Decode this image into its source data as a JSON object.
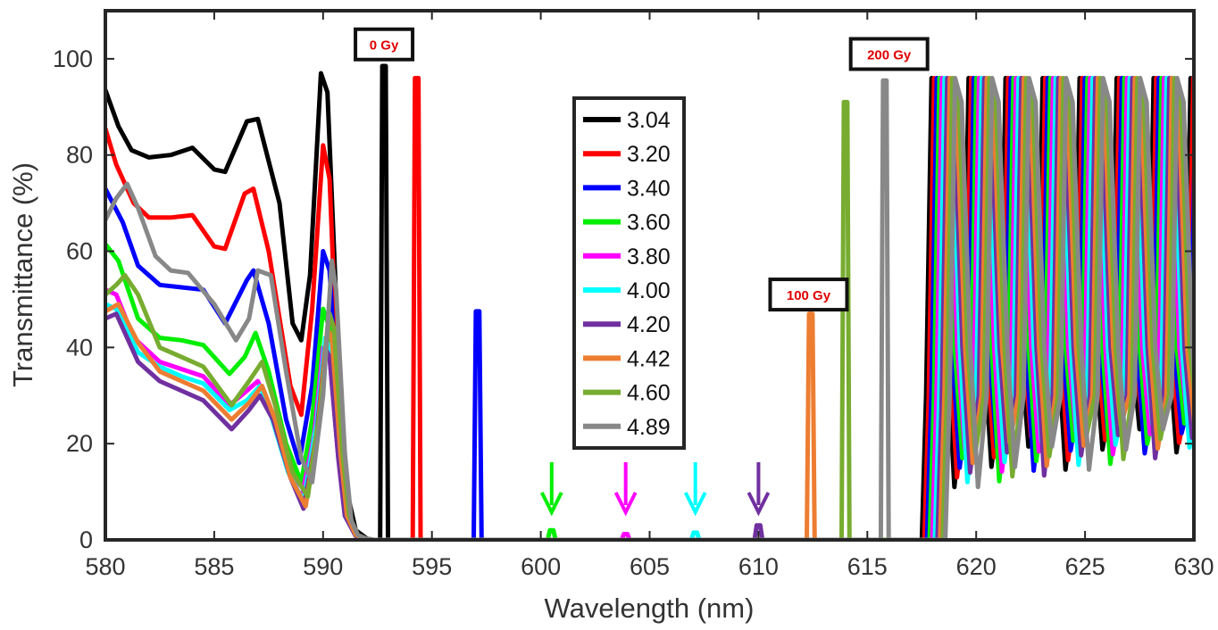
{
  "chart_data": {
    "type": "line",
    "title": "",
    "xlabel": "Wavelength (nm)",
    "ylabel": "Transmittance (%)",
    "xlim": [
      580,
      630
    ],
    "ylim": [
      0,
      110
    ],
    "xticks": [
      580,
      585,
      590,
      595,
      600,
      605,
      610,
      615,
      620,
      625,
      630
    ],
    "yticks": [
      0,
      20,
      40,
      60,
      80,
      100
    ],
    "grid": false,
    "legend_position": "center",
    "series": [
      {
        "name": "3.04",
        "color": "#000000",
        "shoulder": [
          [
            580,
            93.5
          ],
          [
            580.6,
            86
          ],
          [
            581.2,
            81
          ],
          [
            582,
            79.5
          ],
          [
            583,
            80
          ],
          [
            584,
            81.5
          ],
          [
            585,
            77
          ],
          [
            585.5,
            76.5
          ],
          [
            586.5,
            87
          ],
          [
            587,
            87.5
          ],
          [
            588,
            70
          ],
          [
            588.6,
            45
          ],
          [
            589,
            41.5
          ],
          [
            589.4,
            55
          ],
          [
            589.9,
            97
          ],
          [
            590.2,
            93
          ],
          [
            590.6,
            50
          ],
          [
            591,
            12
          ],
          [
            591.5,
            2
          ],
          [
            592,
            0.3
          ]
        ],
        "defect_nm": 592.8,
        "defect_peak": 98.5
      },
      {
        "name": "3.20",
        "color": "#ff0000",
        "shoulder": [
          [
            580,
            85.5
          ],
          [
            580.5,
            78
          ],
          [
            581.3,
            70
          ],
          [
            582,
            67
          ],
          [
            583,
            67
          ],
          [
            584,
            67.5
          ],
          [
            585,
            61
          ],
          [
            585.5,
            60.5
          ],
          [
            586.4,
            72
          ],
          [
            586.8,
            73
          ],
          [
            587.5,
            60
          ],
          [
            588.5,
            32
          ],
          [
            589,
            26
          ],
          [
            589.5,
            48
          ],
          [
            590,
            82
          ],
          [
            590.3,
            75
          ],
          [
            590.7,
            30
          ],
          [
            591,
            8
          ],
          [
            591.5,
            1
          ],
          [
            592,
            0.2
          ]
        ],
        "defect_nm": 594.3,
        "defect_peak": 96
      },
      {
        "name": "3.40",
        "color": "#0000ff",
        "shoulder": [
          [
            580,
            73
          ],
          [
            580.8,
            66
          ],
          [
            581.5,
            57
          ],
          [
            582.5,
            53
          ],
          [
            583.5,
            52.5
          ],
          [
            584.5,
            52
          ],
          [
            585.5,
            45
          ],
          [
            586.5,
            54
          ],
          [
            586.8,
            56
          ],
          [
            587.5,
            45
          ],
          [
            588.3,
            25
          ],
          [
            588.9,
            16
          ],
          [
            589.5,
            32
          ],
          [
            590,
            60
          ],
          [
            590.3,
            56
          ],
          [
            590.7,
            25
          ],
          [
            591,
            7
          ],
          [
            591.5,
            1
          ],
          [
            592,
            0.2
          ]
        ],
        "defect_nm": 597.1,
        "defect_peak": 47.5
      },
      {
        "name": "3.60",
        "color": "#00ee00",
        "shoulder": [
          [
            580,
            61.5
          ],
          [
            580.6,
            58
          ],
          [
            581.5,
            46
          ],
          [
            582.5,
            42
          ],
          [
            583.5,
            41.5
          ],
          [
            584.5,
            40.5
          ],
          [
            585.7,
            34.5
          ],
          [
            586.4,
            38
          ],
          [
            586.9,
            43
          ],
          [
            587.5,
            35
          ],
          [
            588.3,
            20
          ],
          [
            589,
            12
          ],
          [
            589.5,
            25
          ],
          [
            590,
            48
          ],
          [
            590.3,
            44
          ],
          [
            590.7,
            20
          ],
          [
            591,
            6
          ],
          [
            591.5,
            1
          ],
          [
            592,
            0.2
          ]
        ],
        "defect_nm": 600.5,
        "defect_peak": 2
      },
      {
        "name": "3.80",
        "color": "#ff00ff",
        "shoulder": [
          [
            580,
            52
          ],
          [
            580.5,
            51
          ],
          [
            581.3,
            42
          ],
          [
            582.5,
            37
          ],
          [
            583.5,
            35.5
          ],
          [
            584.5,
            34
          ],
          [
            585.7,
            28
          ],
          [
            586.5,
            31
          ],
          [
            587,
            33
          ],
          [
            587.6,
            27
          ],
          [
            588.4,
            15
          ],
          [
            589,
            8.5
          ],
          [
            589.6,
            22
          ],
          [
            590,
            40
          ],
          [
            590.3,
            38
          ],
          [
            590.7,
            17
          ],
          [
            591,
            5
          ],
          [
            591.5,
            0.8
          ],
          [
            592,
            0.2
          ]
        ],
        "defect_nm": 603.9,
        "defect_peak": 1.2
      },
      {
        "name": "4.00",
        "color": "#00ffff",
        "shoulder": [
          [
            580,
            49
          ],
          [
            580.5,
            48
          ],
          [
            581.5,
            39
          ],
          [
            582.5,
            36
          ],
          [
            583.5,
            34
          ],
          [
            584.5,
            32.5
          ],
          [
            585.7,
            27
          ],
          [
            586.5,
            29
          ],
          [
            587.1,
            32
          ],
          [
            587.6,
            26
          ],
          [
            588.4,
            14
          ],
          [
            589.1,
            8
          ],
          [
            589.7,
            24
          ],
          [
            590.1,
            42
          ],
          [
            590.3,
            40
          ],
          [
            590.7,
            18
          ],
          [
            591,
            5
          ],
          [
            591.5,
            0.8
          ],
          [
            592,
            0.2
          ]
        ],
        "defect_nm": 607.1,
        "defect_peak": 1.5
      },
      {
        "name": "4.20",
        "color": "#7030a0",
        "shoulder": [
          [
            580,
            46
          ],
          [
            580.5,
            47
          ],
          [
            581.5,
            37
          ],
          [
            582.5,
            33
          ],
          [
            583.5,
            31
          ],
          [
            584.5,
            29
          ],
          [
            585.8,
            23
          ],
          [
            586.6,
            27
          ],
          [
            587.1,
            30
          ],
          [
            587.7,
            25
          ],
          [
            588.5,
            13
          ],
          [
            589.1,
            6.5
          ],
          [
            589.7,
            22
          ],
          [
            590.1,
            40
          ],
          [
            590.3,
            38
          ],
          [
            590.7,
            17
          ],
          [
            591,
            5
          ],
          [
            591.5,
            0.8
          ],
          [
            592,
            0.2
          ]
        ],
        "defect_nm": 610,
        "defect_peak": 3
      },
      {
        "name": "4.42",
        "color": "#ed7d31",
        "shoulder": [
          [
            580,
            47.5
          ],
          [
            580.6,
            49
          ],
          [
            581.5,
            41
          ],
          [
            582.5,
            35
          ],
          [
            583.5,
            33
          ],
          [
            584.5,
            31
          ],
          [
            585.8,
            25
          ],
          [
            586.6,
            28.5
          ],
          [
            587.2,
            32
          ],
          [
            587.8,
            25
          ],
          [
            588.5,
            13
          ],
          [
            589.2,
            7
          ],
          [
            589.8,
            25
          ],
          [
            590.2,
            44
          ],
          [
            590.4,
            42
          ],
          [
            590.8,
            18
          ],
          [
            591.1,
            5
          ],
          [
            591.5,
            1
          ],
          [
            592,
            0.2
          ]
        ],
        "defect_nm": 612.4,
        "defect_peak": 47
      },
      {
        "name": "4.60",
        "color": "#77ac30",
        "shoulder": [
          [
            580,
            51
          ],
          [
            580.5,
            53
          ],
          [
            580.9,
            55
          ],
          [
            581.5,
            51
          ],
          [
            582.5,
            40
          ],
          [
            583.5,
            38
          ],
          [
            584.5,
            36
          ],
          [
            585.8,
            28
          ],
          [
            586.6,
            33
          ],
          [
            587.2,
            37
          ],
          [
            587.8,
            28
          ],
          [
            588.6,
            14
          ],
          [
            589.3,
            9
          ],
          [
            589.9,
            28
          ],
          [
            590.3,
            47
          ],
          [
            590.5,
            44
          ],
          [
            590.9,
            18
          ],
          [
            591.2,
            5
          ],
          [
            591.6,
            1
          ],
          [
            592,
            0.2
          ]
        ],
        "defect_nm": 614,
        "defect_peak": 91
      },
      {
        "name": "4.89",
        "color": "#888888",
        "shoulder": [
          [
            580,
            66.5
          ],
          [
            580.5,
            71
          ],
          [
            581,
            74
          ],
          [
            581.5,
            69
          ],
          [
            582.3,
            59
          ],
          [
            583,
            56
          ],
          [
            583.8,
            55.5
          ],
          [
            585,
            49
          ],
          [
            586,
            41.5
          ],
          [
            586.6,
            46
          ],
          [
            587,
            56
          ],
          [
            587.6,
            55
          ],
          [
            588.3,
            35
          ],
          [
            589,
            17
          ],
          [
            589.5,
            12
          ],
          [
            590,
            30
          ],
          [
            590.4,
            58
          ],
          [
            590.6,
            52
          ],
          [
            591,
            18
          ],
          [
            591.3,
            4
          ],
          [
            591.6,
            1
          ],
          [
            592,
            0.2
          ]
        ],
        "defect_nm": 615.8,
        "defect_peak": 95.5
      }
    ],
    "annotations": [
      {
        "text": "0 Gy",
        "x": 592.8,
        "y": 103
      },
      {
        "text": "200 Gy",
        "x": 616.0,
        "y": 101
      },
      {
        "text": "100 Gy",
        "x": 612.3,
        "y": 51
      }
    ],
    "arrows": [
      {
        "x": 600.5,
        "color": "#00ee00"
      },
      {
        "x": 603.9,
        "color": "#ff00ff"
      },
      {
        "x": 607.1,
        "color": "#00ffff"
      },
      {
        "x": 610.0,
        "color": "#7030a0"
      }
    ],
    "band_edge": {
      "start_nm": 617.7,
      "end_nm": 630,
      "peak": 96
    }
  }
}
